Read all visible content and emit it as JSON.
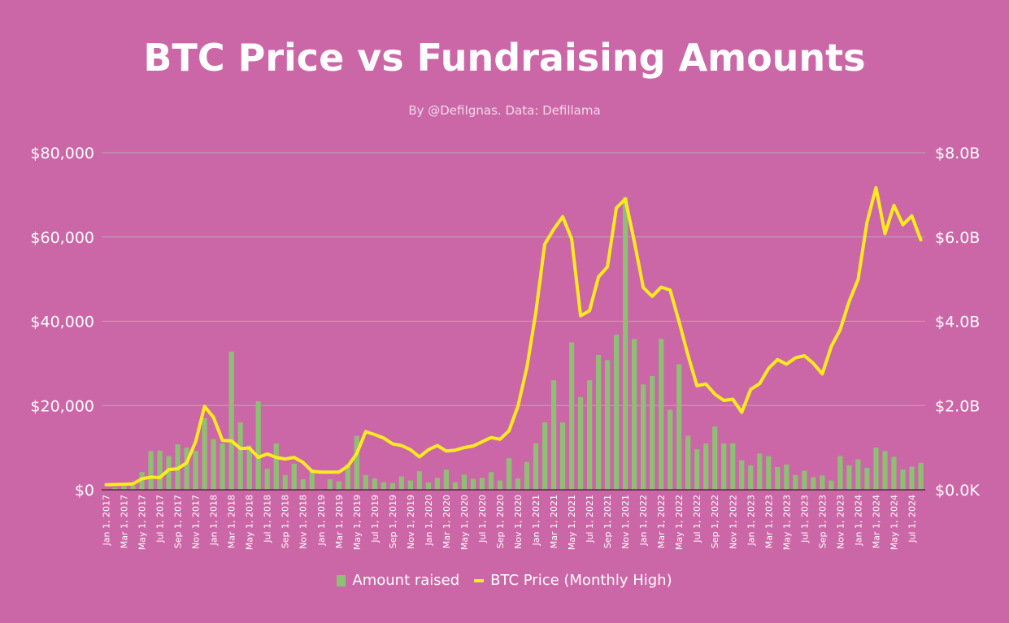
{
  "title": "BTC Price vs Fundraising Amounts",
  "subtitle": "By @DefiIgnas. Data: Defillama",
  "chart_data": {
    "type": "bar",
    "title": "BTC Price vs Fundraising Amounts",
    "subtitle": "By @DefiIgnas. Data: Defillama",
    "y_left": {
      "ticks": [
        "$0",
        "$20,000",
        "$40,000",
        "$60,000",
        "$80,000"
      ],
      "range": [
        0,
        80000
      ]
    },
    "y_right": {
      "ticks": [
        "$0.0K",
        "$2.0B",
        "$4.0B",
        "$6.0B",
        "$8.0B"
      ],
      "range": [
        0,
        8000000000
      ]
    },
    "grid": true,
    "legend": "bottom",
    "x_tick_labels": [
      "Jan 1, 2017",
      "Mar 1, 2017",
      "May 1, 2017",
      "Jul 1, 2017",
      "Sep 1, 2017",
      "Nov 1, 2017",
      "Jan 1, 2018",
      "Mar 1, 2018",
      "May 1, 2018",
      "Jul 1, 2018",
      "Sep 1, 2018",
      "Nov 1, 2018",
      "Jan 1, 2019",
      "Mar 1, 2019",
      "May 1, 2019",
      "Jul 1, 2019",
      "Sep 1, 2019",
      "Nov 1, 2019",
      "Jan 1, 2020",
      "Mar 1, 2020",
      "May 1, 2020",
      "Jul 1, 2020",
      "Sep 1, 2020",
      "Nov 1, 2020",
      "Jan 1, 2021",
      "Mar 1, 2021",
      "May 1, 2021",
      "Jul 1, 2021",
      "Sep 1, 2021",
      "Nov 1, 2021",
      "Jan 1, 2022",
      "Mar 1, 2022",
      "May 1, 2022",
      "Jul 1, 2022",
      "Sep 1, 2022",
      "Nov 1, 2022",
      "Jan 1, 2023",
      "Mar 1, 2023",
      "May 1, 2023",
      "Jul 1, 2023",
      "Sep 1, 2023",
      "Nov 1, 2023",
      "Jan 1, 2024",
      "Mar 1, 2024",
      "May 1, 2024",
      "Jul 1, 2024"
    ],
    "series": [
      {
        "name": "Amount raised",
        "type": "bar",
        "axis": "right",
        "color": "#8fbf74",
        "values": [
          0.02,
          0.05,
          0.08,
          0.1,
          0.42,
          0.92,
          0.93,
          0.8,
          1.08,
          1.0,
          0.92,
          1.7,
          1.2,
          1.1,
          3.28,
          1.6,
          1.05,
          2.1,
          0.5,
          1.1,
          0.35,
          0.62,
          0.25,
          0.48,
          0.02,
          0.25,
          0.2,
          0.6,
          1.28,
          0.35,
          0.27,
          0.18,
          0.16,
          0.32,
          0.22,
          0.44,
          0.17,
          0.28,
          0.48,
          0.18,
          0.36,
          0.26,
          0.28,
          0.42,
          0.22,
          0.75,
          0.27,
          0.66,
          1.1,
          1.6,
          2.6,
          1.6,
          3.5,
          2.2,
          2.6,
          3.2,
          3.08,
          3.68,
          6.95,
          3.58,
          2.5,
          2.7,
          3.58,
          1.9,
          2.98,
          1.28,
          0.96,
          1.1,
          1.5,
          1.1,
          1.1,
          0.7,
          0.58,
          0.86,
          0.8,
          0.54,
          0.6,
          0.35,
          0.45,
          0.3,
          0.34,
          0.22,
          0.8,
          0.58,
          0.72,
          0.52,
          1.0,
          0.92,
          0.78,
          0.48,
          0.55,
          0.64
        ]
      },
      {
        "name": "BTC Price (Monthly High)",
        "type": "line",
        "axis": "left",
        "color": "#ffeb1f",
        "values": [
          1200,
          1250,
          1300,
          1400,
          2600,
          3000,
          2900,
          4800,
          5000,
          6400,
          11400,
          19800,
          17200,
          11700,
          11600,
          9800,
          9900,
          7700,
          8500,
          7700,
          7300,
          7700,
          6500,
          4400,
          4200,
          4200,
          4200,
          5600,
          8600,
          13800,
          13100,
          12300,
          10900,
          10500,
          9500,
          7800,
          9500,
          10500,
          9200,
          9400,
          10000,
          10400,
          11400,
          12400,
          12000,
          14000,
          19800,
          29000,
          42000,
          58300,
          61800,
          64800,
          59500,
          41300,
          42500,
          50500,
          52900,
          66900,
          69000,
          59000,
          48000,
          45900,
          48100,
          47400,
          39900,
          31900,
          24700,
          25100,
          22700,
          21200,
          21500,
          18400,
          23800,
          25200,
          28800,
          30900,
          29800,
          31300,
          31800,
          30000,
          27500,
          34000,
          38000,
          44700,
          49900,
          63500,
          71700,
          60800,
          67500,
          62900,
          65000,
          59300
        ]
      }
    ]
  }
}
